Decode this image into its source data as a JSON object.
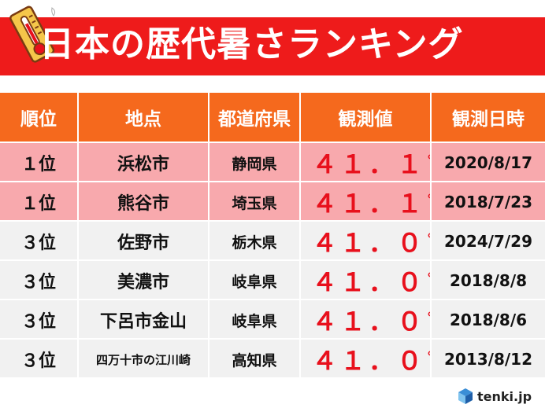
{
  "title": "日本の歴代暑さランキング",
  "colors": {
    "title_bg": "#ee1b1b",
    "header_bg": "#f5691d",
    "top_row_bg": "#f8a9ad",
    "row_bg": "#f1f1f1",
    "value_color": "#e8101c"
  },
  "icons": {
    "title": "thermometer-icon",
    "logo": "tenki-cube-icon"
  },
  "table": {
    "headers": [
      "順位",
      "地点",
      "都道府県",
      "観測値",
      "観測日時"
    ],
    "rows": [
      {
        "rank": "１位",
        "place": "浜松市",
        "prefecture": "静岡県",
        "value": "４１．１",
        "unit": "℃",
        "date": "2020/8/17",
        "highlight": true
      },
      {
        "rank": "１位",
        "place": "熊谷市",
        "prefecture": "埼玉県",
        "value": "４１．１",
        "unit": "℃",
        "date": "2018/7/23",
        "highlight": true
      },
      {
        "rank": "３位",
        "place": "佐野市",
        "prefecture": "栃木県",
        "value": "４１．０",
        "unit": "℃",
        "date": "2024/7/29",
        "highlight": false
      },
      {
        "rank": "３位",
        "place": "美濃市",
        "prefecture": "岐阜県",
        "value": "４１．０",
        "unit": "℃",
        "date": "2018/8/8",
        "highlight": false
      },
      {
        "rank": "３位",
        "place": "下呂市金山",
        "prefecture": "岐阜県",
        "value": "４１．０",
        "unit": "℃",
        "date": "2018/8/6",
        "highlight": false
      },
      {
        "rank": "３位",
        "place": "四万十市の江川崎",
        "prefecture": "高知県",
        "value": "４１．０",
        "unit": "℃",
        "date": "2013/8/12",
        "highlight": false
      }
    ]
  },
  "logo_text": "tenki.jp"
}
